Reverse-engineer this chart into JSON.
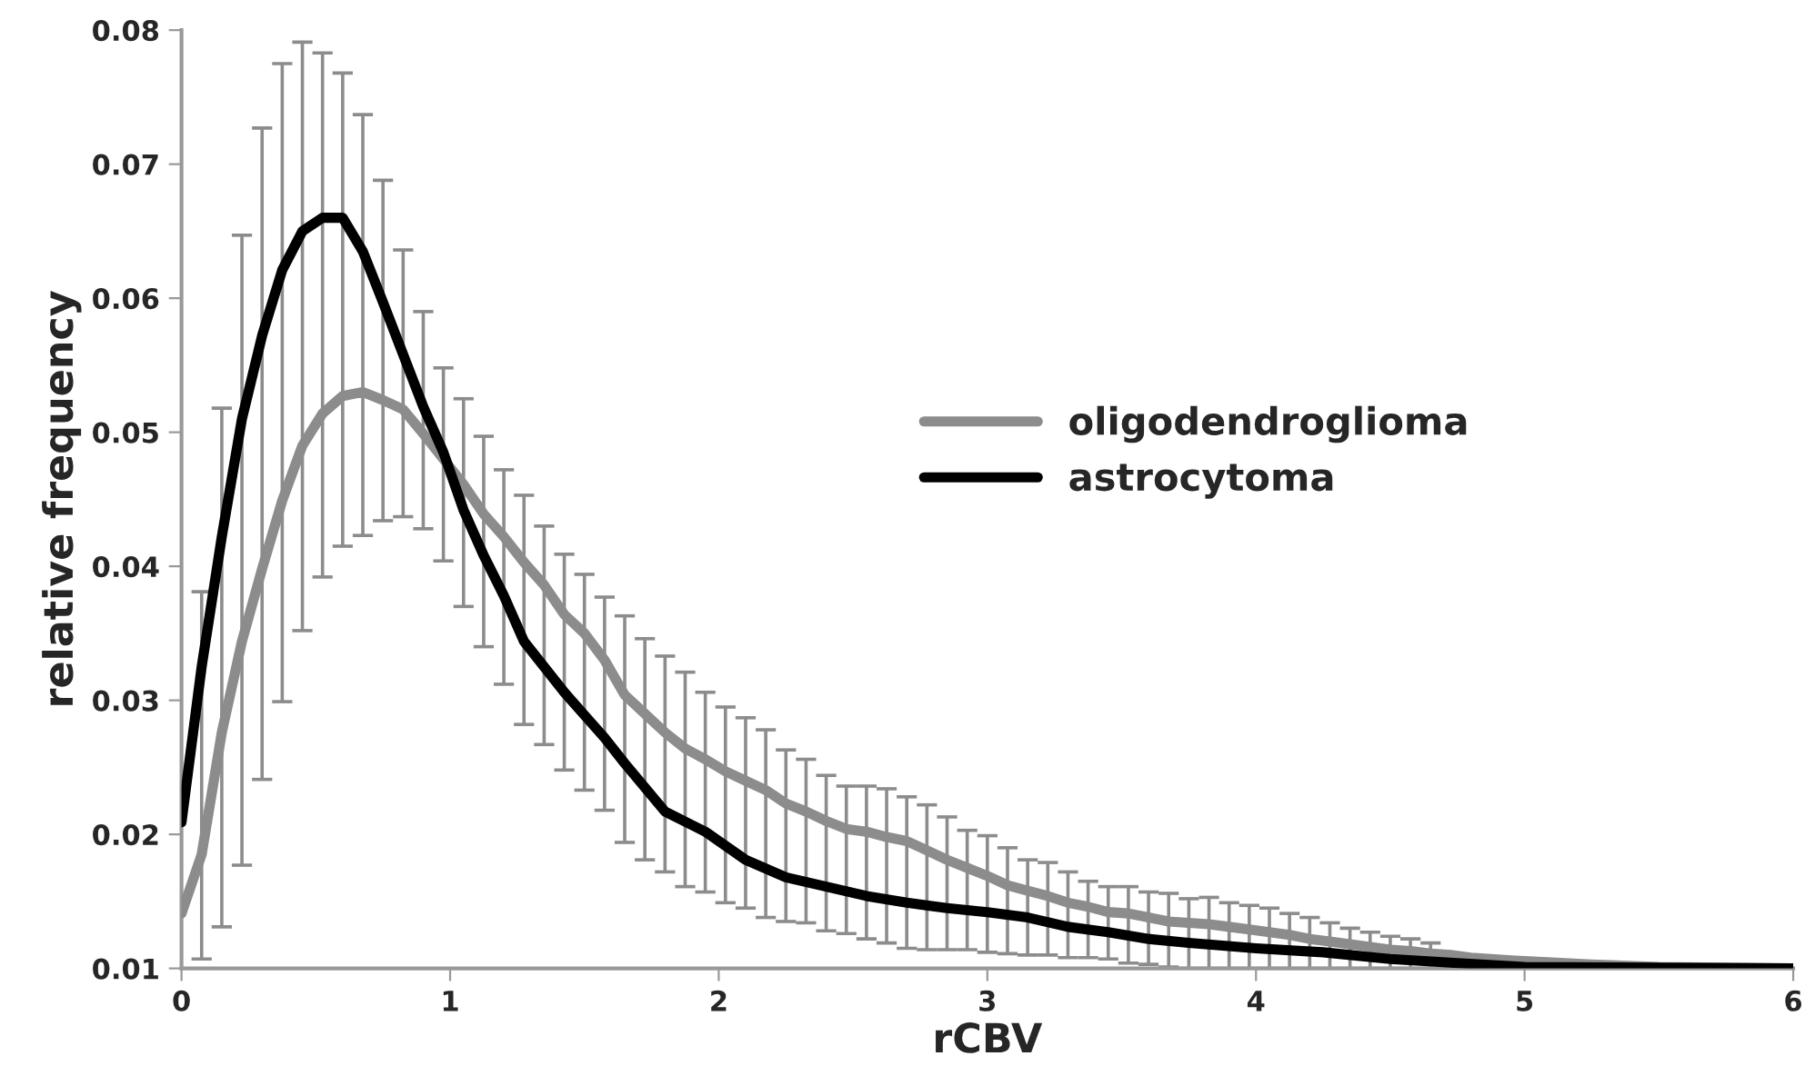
{
  "chart_data": {
    "type": "line",
    "xlabel": "rCBV",
    "ylabel": "relative frequency",
    "xlim": [
      0,
      6
    ],
    "xticks": [
      0,
      1,
      2,
      3,
      4,
      5,
      6
    ],
    "ylim": [
      0.01,
      0.08
    ],
    "yticks": [
      0.01,
      0.02,
      0.03,
      0.04,
      0.05,
      0.06,
      0.07,
      0.08
    ],
    "grid": false,
    "legend": "right",
    "marker": "none",
    "line_style": "solid",
    "series": [
      {
        "name": "oligodendroglioma",
        "color": "#8c8c8c",
        "x": [
          0,
          0.075,
          0.15,
          0.225,
          0.3,
          0.375,
          0.45,
          0.525,
          0.6,
          0.675,
          0.75,
          0.825,
          0.9,
          0.975,
          1.05,
          1.125,
          1.2,
          1.275,
          1.35,
          1.425,
          1.5,
          1.575,
          1.65,
          1.725,
          1.8,
          1.875,
          1.95,
          2.025,
          2.1,
          2.175,
          2.25,
          2.325,
          2.4,
          2.475,
          2.55,
          2.625,
          2.7,
          2.775,
          2.85,
          2.925,
          3.0,
          3.075,
          3.15,
          3.225,
          3.3,
          3.375,
          3.45,
          3.525,
          3.6,
          3.675,
          3.75,
          3.825,
          3.9,
          3.975,
          4.05,
          4.125,
          4.2,
          4.275,
          4.35,
          4.425,
          4.5,
          4.575,
          4.65,
          4.725,
          4.8,
          4.875,
          4.95,
          5.25,
          5.5,
          6.0
        ],
        "values": [
          0.0141,
          0.0185,
          0.0276,
          0.0344,
          0.0398,
          0.0449,
          0.049,
          0.0514,
          0.0527,
          0.053,
          0.0524,
          0.0517,
          0.0499,
          0.048,
          0.0461,
          0.0439,
          0.0422,
          0.0403,
          0.0386,
          0.0364,
          0.035,
          0.033,
          0.0304,
          0.029,
          0.0276,
          0.0264,
          0.0256,
          0.0247,
          0.024,
          0.0233,
          0.0223,
          0.0217,
          0.021,
          0.0204,
          0.0202,
          0.0198,
          0.0195,
          0.0188,
          0.0181,
          0.0175,
          0.0169,
          0.0162,
          0.0158,
          0.0154,
          0.0149,
          0.0146,
          0.0142,
          0.0141,
          0.0138,
          0.0135,
          0.0134,
          0.0133,
          0.0131,
          0.0129,
          0.0127,
          0.0125,
          0.0122,
          0.012,
          0.0118,
          0.0116,
          0.0114,
          0.0113,
          0.0111,
          0.011,
          0.0108,
          0.0107,
          0.0106,
          0.0103,
          0.0101,
          0.01
        ],
        "errors": [
          null,
          [
            0.0107,
            0.0381
          ],
          [
            0.0131,
            0.0518
          ],
          [
            0.0177,
            0.0647
          ],
          [
            0.0241,
            0.0727
          ],
          [
            0.0299,
            0.0775
          ],
          [
            0.0352,
            0.0791
          ],
          [
            0.0392,
            0.0783
          ],
          [
            0.0415,
            0.0768
          ],
          [
            0.0423,
            0.0737
          ],
          [
            0.0434,
            0.0688
          ],
          [
            0.0437,
            0.0636
          ],
          [
            0.0428,
            0.059
          ],
          [
            0.0404,
            0.0548
          ],
          [
            0.037,
            0.0525
          ],
          [
            0.034,
            0.0497
          ],
          [
            0.0312,
            0.0472
          ],
          [
            0.0282,
            0.0453
          ],
          [
            0.0267,
            0.043
          ],
          [
            0.0248,
            0.0409
          ],
          [
            0.0233,
            0.0394
          ],
          [
            0.0218,
            0.0377
          ],
          [
            0.0194,
            0.0363
          ],
          [
            0.0181,
            0.0346
          ],
          [
            0.0172,
            0.0333
          ],
          [
            0.0161,
            0.0321
          ],
          [
            0.0157,
            0.0306
          ],
          [
            0.0149,
            0.0295
          ],
          [
            0.0145,
            0.0287
          ],
          [
            0.0138,
            0.0278
          ],
          [
            0.0135,
            0.0263
          ],
          [
            0.0134,
            0.0256
          ],
          [
            0.0128,
            0.0244
          ],
          [
            0.0126,
            0.0236
          ],
          [
            0.0122,
            0.0236
          ],
          [
            0.0119,
            0.0234
          ],
          [
            0.0115,
            0.0228
          ],
          [
            0.0114,
            0.0222
          ],
          [
            0.0114,
            0.0213
          ],
          [
            0.0114,
            0.0203
          ],
          [
            0.0112,
            0.0199
          ],
          [
            0.0111,
            0.019
          ],
          [
            0.011,
            0.0181
          ],
          [
            0.011,
            0.0179
          ],
          [
            0.0108,
            0.0172
          ],
          [
            0.0108,
            0.0165
          ],
          [
            0.0107,
            0.0161
          ],
          [
            0.0104,
            0.0161
          ],
          [
            0.0103,
            0.0157
          ],
          [
            0.0101,
            0.0156
          ],
          [
            0.01,
            0.0152
          ],
          [
            0.01,
            0.0153
          ],
          [
            0.01,
            0.0149
          ],
          [
            0.01,
            0.0147
          ],
          [
            0.01,
            0.0145
          ],
          [
            0.01,
            0.0141
          ],
          [
            0.01,
            0.0138
          ],
          [
            0.01,
            0.0134
          ],
          [
            0.01,
            0.013
          ],
          [
            0.01,
            0.0127
          ],
          [
            0.01,
            0.0124
          ],
          [
            0.01,
            0.0122
          ],
          [
            0.01,
            0.0119
          ],
          null,
          null,
          null,
          null,
          null,
          null,
          null
        ]
      },
      {
        "name": "astrocytoma",
        "color": "#000000",
        "x": [
          0,
          0.075,
          0.15,
          0.225,
          0.3,
          0.375,
          0.45,
          0.525,
          0.6,
          0.675,
          0.75,
          0.825,
          0.9,
          0.975,
          1.05,
          1.125,
          1.2,
          1.275,
          1.35,
          1.425,
          1.5,
          1.575,
          1.65,
          1.8,
          1.95,
          2.1,
          2.25,
          2.4,
          2.55,
          2.7,
          2.85,
          3.0,
          3.15,
          3.3,
          3.45,
          3.6,
          3.75,
          4.0,
          4.25,
          4.5,
          4.75,
          5.0,
          6.0
        ],
        "values": [
          0.0209,
          0.0325,
          0.0422,
          0.051,
          0.0572,
          0.0621,
          0.065,
          0.066,
          0.066,
          0.0635,
          0.0597,
          0.0558,
          0.0519,
          0.0485,
          0.0442,
          0.0408,
          0.0378,
          0.0344,
          0.0325,
          0.0306,
          0.0289,
          0.0272,
          0.0253,
          0.0217,
          0.0202,
          0.0181,
          0.0168,
          0.0161,
          0.0154,
          0.0149,
          0.0145,
          0.0142,
          0.0138,
          0.0131,
          0.0127,
          0.0122,
          0.0119,
          0.0115,
          0.0112,
          0.0107,
          0.0104,
          0.0101,
          0.01
        ]
      }
    ]
  }
}
